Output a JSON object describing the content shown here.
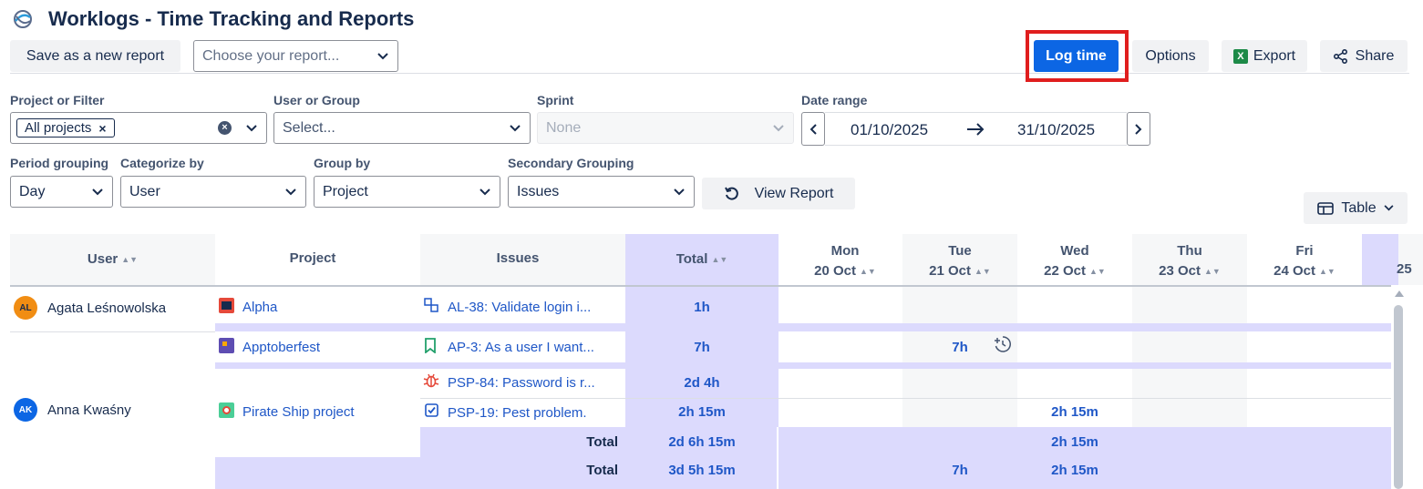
{
  "app": {
    "title": "Worklogs - Time Tracking and Reports"
  },
  "toolbar": {
    "save_report": "Save as a new report",
    "choose_report_placeholder": "Choose your report...",
    "log_time": "Log time",
    "options": "Options",
    "export": "Export",
    "share": "Share"
  },
  "filters": {
    "project_label": "Project or Filter",
    "project_tag": "All projects",
    "user_label": "User or Group",
    "user_placeholder": "Select...",
    "sprint_label": "Sprint",
    "sprint_value": "None",
    "date_label": "Date range",
    "date_from": "01/10/2025",
    "date_to": "31/10/2025",
    "period_label": "Period grouping",
    "period_value": "Day",
    "categorize_label": "Categorize by",
    "categorize_value": "User",
    "group_label": "Group by",
    "group_value": "Project",
    "secondary_label": "Secondary Grouping",
    "secondary_value": "Issues",
    "view_report": "View Report",
    "view_mode": "Table"
  },
  "table": {
    "headers": {
      "user": "User",
      "project": "Project",
      "issues": "Issues",
      "total": "Total",
      "days": [
        {
          "d": "Mon",
          "date": "20 Oct"
        },
        {
          "d": "Tue",
          "date": "21 Oct"
        },
        {
          "d": "Wed",
          "date": "22 Oct"
        },
        {
          "d": "Thu",
          "date": "23 Oct"
        },
        {
          "d": "Fri",
          "date": "24 Oct"
        }
      ],
      "partial_day": "25"
    },
    "users": [
      {
        "initials": "AL",
        "name": "Agata Leśnowolska",
        "color": "#f18d13"
      },
      {
        "initials": "AK",
        "name": "Anna Kwaśny",
        "color": "#0c66e4"
      }
    ],
    "projects": [
      "Alpha",
      "Apptoberfest",
      "Pirate Ship project"
    ],
    "issues": [
      {
        "key": "AL-38: Validate login i...",
        "total": "1h",
        "tue": ""
      },
      {
        "key": "AP-3: As a user I want...",
        "total": "7h",
        "tue": "7h"
      },
      {
        "key": "PSP-84: Password is r...",
        "total": "2d 4h",
        "tue": ""
      },
      {
        "key": "PSP-19: Pest problem.",
        "total": "2h 15m",
        "wed": "2h 15m"
      }
    ],
    "subtotal": {
      "label": "Total",
      "total": "2d 6h 15m",
      "wed": "2h 15m"
    },
    "grand_total": {
      "label": "Total",
      "total": "3d 5h 15m",
      "tue": "7h",
      "wed": "2h 15m"
    }
  }
}
